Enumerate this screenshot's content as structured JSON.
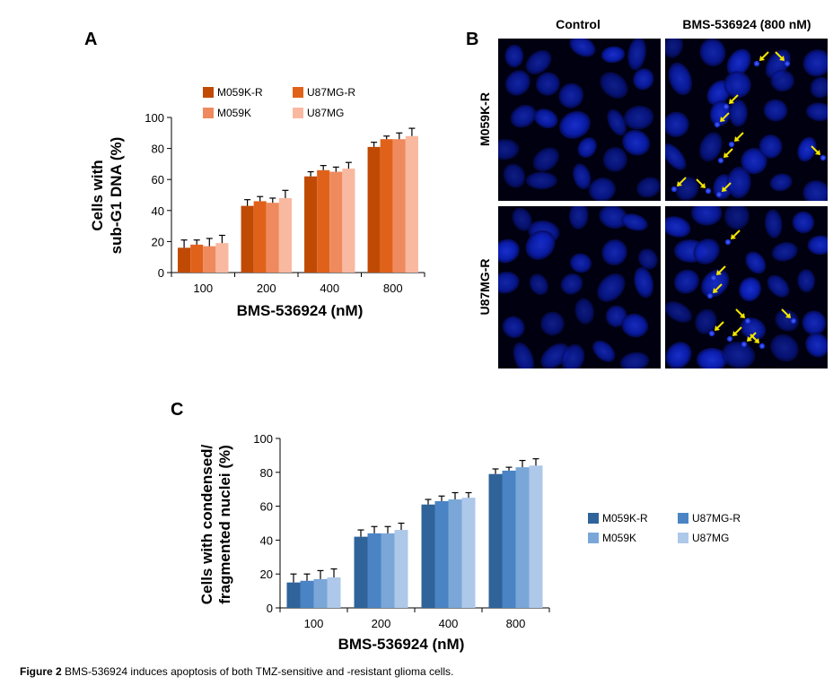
{
  "panels": {
    "A": {
      "label": "A"
    },
    "B": {
      "label": "B",
      "col_headers": [
        "Control",
        "BMS-536924 (800 nM)"
      ],
      "row_labels": [
        "M059K-R",
        "U87MG-R"
      ],
      "micrograph_colors": {
        "background": "#000010",
        "nucleus": "#0a1eb4",
        "arrow": "#f4e600"
      }
    },
    "C": {
      "label": "C"
    }
  },
  "chart_data": [
    {
      "panel": "A",
      "type": "bar",
      "categories": [
        "100",
        "200",
        "400",
        "800"
      ],
      "series": [
        {
          "name": "M059K-R",
          "color": "#c04a04",
          "values": [
            16,
            43,
            62,
            81
          ],
          "errors": [
            5,
            4,
            3,
            3
          ]
        },
        {
          "name": "U87MG-R",
          "color": "#e0621a",
          "values": [
            18,
            46,
            66,
            86
          ],
          "errors": [
            3,
            3,
            3,
            2
          ]
        },
        {
          "name": "M059K",
          "color": "#ef8a5e",
          "values": [
            17,
            45,
            65,
            86
          ],
          "errors": [
            5,
            3,
            3,
            4
          ]
        },
        {
          "name": "U87MG",
          "color": "#f9b9a0",
          "values": [
            19,
            48,
            67,
            88
          ],
          "errors": [
            5,
            5,
            4,
            5
          ]
        }
      ],
      "legend_order": [
        "M059K-R",
        "U87MG-R",
        "M059K",
        "U87MG"
      ],
      "legend_position": "top",
      "ylim": [
        0,
        100
      ],
      "yticks": [
        "0",
        "20",
        "40",
        "60",
        "80",
        "100"
      ],
      "xlabel": "BMS-536924 (nM)",
      "ylabel_lines": [
        "Cells with",
        "sub-G1 DNA (%)"
      ],
      "grid": false
    },
    {
      "panel": "C",
      "type": "bar",
      "categories": [
        "100",
        "200",
        "400",
        "800"
      ],
      "series": [
        {
          "name": "M059K-R",
          "color": "#2f6399",
          "values": [
            15,
            42,
            61,
            79
          ],
          "errors": [
            5,
            4,
            3,
            3
          ]
        },
        {
          "name": "U87MG-R",
          "color": "#4a84c4",
          "values": [
            16,
            44,
            63,
            81
          ],
          "errors": [
            4,
            4,
            3,
            2
          ]
        },
        {
          "name": "M059K",
          "color": "#7aa7d8",
          "values": [
            17,
            44,
            64,
            83
          ],
          "errors": [
            5,
            4,
            4,
            4
          ]
        },
        {
          "name": "U87MG",
          "color": "#aec8e9",
          "values": [
            18,
            46,
            65,
            84
          ],
          "errors": [
            5,
            4,
            3,
            4
          ]
        }
      ],
      "legend_order": [
        "M059K-R",
        "U87MG-R",
        "M059K",
        "U87MG"
      ],
      "legend_position": "right",
      "ylim": [
        0,
        100
      ],
      "yticks": [
        "0",
        "20",
        "40",
        "60",
        "80",
        "100"
      ],
      "xlabel": "BMS-536924 (nM)",
      "ylabel_lines": [
        "Cells with condensed/",
        "fragmented nuclei (%)"
      ],
      "grid": false
    }
  ],
  "caption": {
    "label": "Figure 2",
    "text": " BMS-536924 induces apoptosis of both TMZ-sensitive and -resistant glioma cells."
  }
}
